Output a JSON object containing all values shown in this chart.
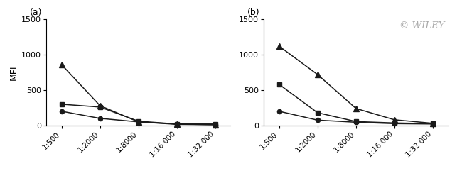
{
  "x_labels": [
    "1:500",
    "1:2000",
    "1:8000",
    "1:16 000",
    "1:32 000"
  ],
  "x_values": [
    500,
    2000,
    8000,
    16000,
    32000
  ],
  "panel_a": {
    "triangle": [
      860,
      280,
      50,
      20,
      10
    ],
    "square": [
      300,
      260,
      60,
      20,
      20
    ],
    "circle": [
      200,
      100,
      50,
      15,
      10
    ]
  },
  "panel_b": {
    "triangle": [
      1120,
      720,
      240,
      80,
      30
    ],
    "square": [
      580,
      180,
      55,
      35,
      25
    ],
    "circle": [
      200,
      75,
      45,
      25,
      20
    ]
  },
  "ylim": [
    0,
    1500
  ],
  "yticks": [
    0,
    500,
    1000,
    1500
  ],
  "ylabel": "MFI",
  "color": "#1a1a1a",
  "watermark_text": "© WILEY",
  "watermark_color": "#aaaaaa",
  "label_a": "(a)",
  "label_b": "(b)"
}
